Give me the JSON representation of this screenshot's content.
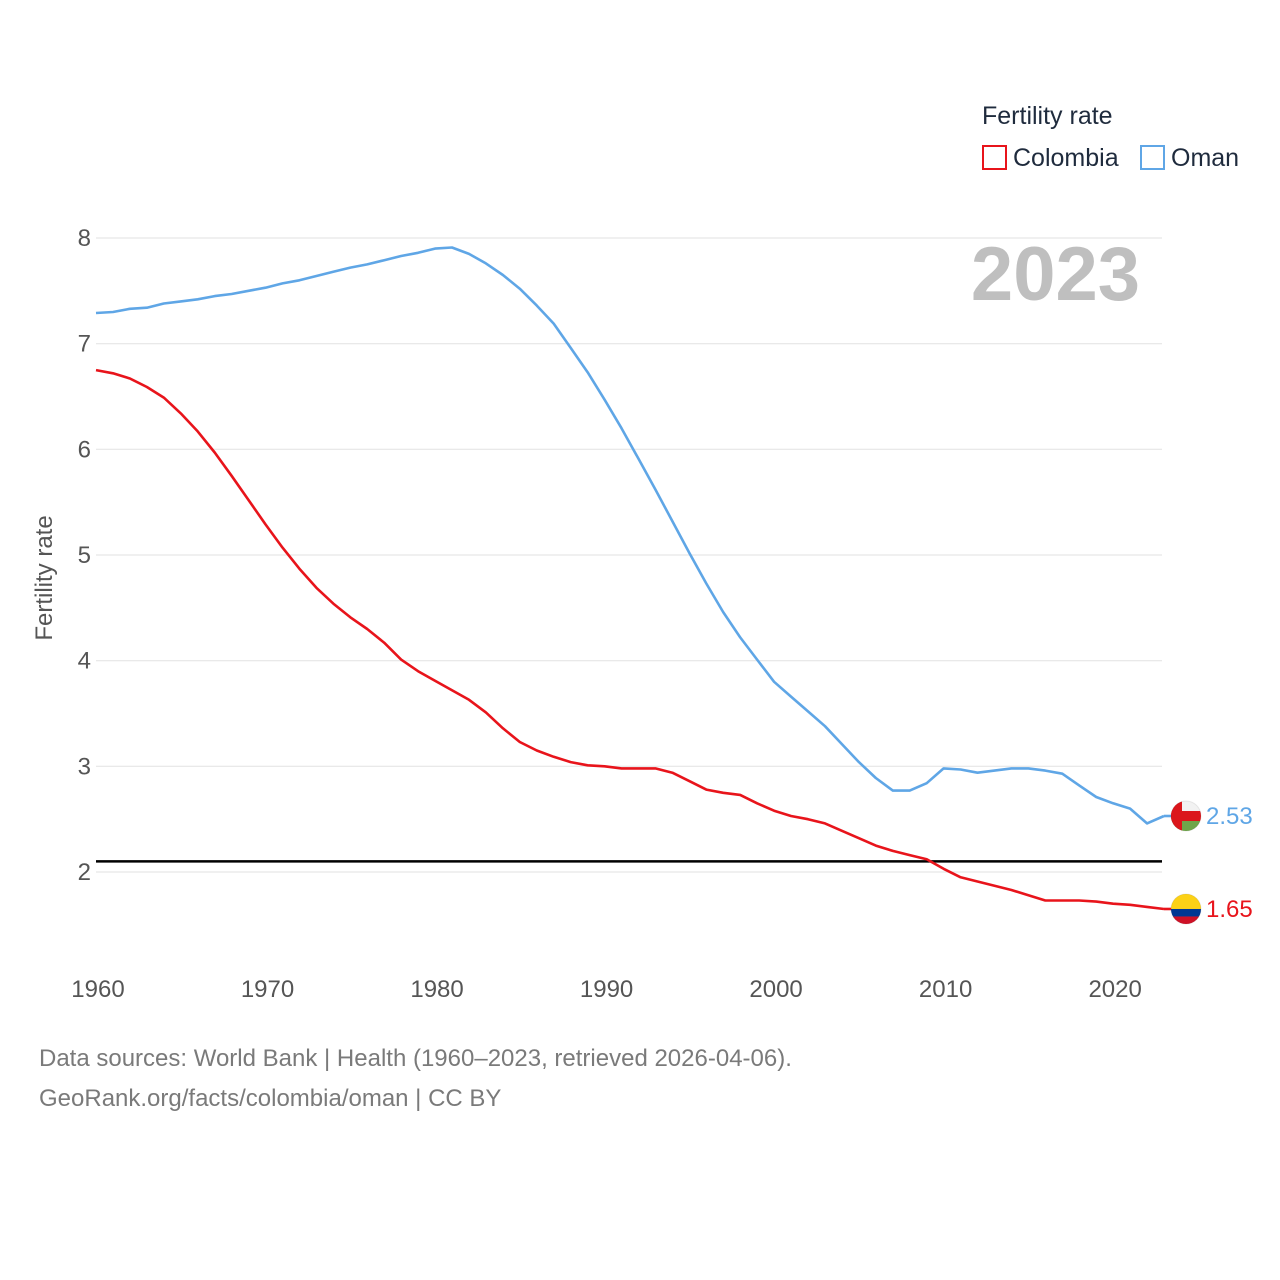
{
  "chart_data": {
    "type": "line",
    "title": "",
    "year_label": "2023",
    "xlabel": "",
    "ylabel": "Fertility rate",
    "xlim": [
      1960,
      2023
    ],
    "ylim": [
      1.2,
      8.2
    ],
    "x_ticks": [
      1960,
      1970,
      1980,
      1990,
      2000,
      2010,
      2020
    ],
    "y_ticks": [
      2,
      3,
      4,
      5,
      6,
      7,
      8
    ],
    "reference_line": 2.1,
    "legend": {
      "title": "Fertility rate",
      "position": "top-right"
    },
    "x": [
      1960,
      1961,
      1962,
      1963,
      1964,
      1965,
      1966,
      1967,
      1968,
      1969,
      1970,
      1971,
      1972,
      1973,
      1974,
      1975,
      1976,
      1977,
      1978,
      1979,
      1980,
      1981,
      1982,
      1983,
      1984,
      1985,
      1986,
      1987,
      1988,
      1989,
      1990,
      1991,
      1992,
      1993,
      1994,
      1995,
      1996,
      1997,
      1998,
      1999,
      2000,
      2001,
      2002,
      2003,
      2004,
      2005,
      2006,
      2007,
      2008,
      2009,
      2010,
      2011,
      2012,
      2013,
      2014,
      2015,
      2016,
      2017,
      2018,
      2019,
      2020,
      2021,
      2022,
      2023
    ],
    "series": [
      {
        "name": "Colombia",
        "color": "#e8141b",
        "end_label": "1.65",
        "flag": "colombia-flag",
        "values": [
          6.75,
          6.72,
          6.67,
          6.59,
          6.49,
          6.34,
          6.17,
          5.97,
          5.75,
          5.52,
          5.29,
          5.07,
          4.87,
          4.69,
          4.54,
          4.41,
          4.3,
          4.17,
          4.01,
          3.9,
          3.81,
          3.72,
          3.63,
          3.51,
          3.36,
          3.23,
          3.15,
          3.09,
          3.04,
          3.01,
          3.0,
          2.98,
          2.98,
          2.98,
          2.94,
          2.86,
          2.78,
          2.75,
          2.73,
          2.65,
          2.58,
          2.53,
          2.5,
          2.46,
          2.39,
          2.32,
          2.25,
          2.2,
          2.16,
          2.12,
          2.03,
          1.95,
          1.91,
          1.87,
          1.83,
          1.78,
          1.73,
          1.73,
          1.73,
          1.72,
          1.7,
          1.69,
          1.67,
          1.65
        ]
      },
      {
        "name": "Oman",
        "color": "#5fa6e6",
        "end_label": "2.53",
        "flag": "oman-flag",
        "values": [
          7.29,
          7.3,
          7.33,
          7.34,
          7.38,
          7.4,
          7.42,
          7.45,
          7.47,
          7.5,
          7.53,
          7.57,
          7.6,
          7.64,
          7.68,
          7.72,
          7.75,
          7.79,
          7.83,
          7.86,
          7.9,
          7.91,
          7.85,
          7.76,
          7.65,
          7.52,
          7.36,
          7.19,
          6.96,
          6.73,
          6.47,
          6.2,
          5.91,
          5.62,
          5.32,
          5.02,
          4.73,
          4.46,
          4.22,
          4.01,
          3.8,
          3.66,
          3.52,
          3.38,
          3.21,
          3.04,
          2.89,
          2.77,
          2.77,
          2.84,
          2.98,
          2.97,
          2.94,
          2.96,
          2.98,
          2.98,
          2.96,
          2.93,
          2.82,
          2.71,
          2.65,
          2.6,
          2.46,
          2.53
        ]
      }
    ]
  },
  "footer": {
    "line1": "Data sources: World Bank | Health (1960–2023, retrieved 2026-04-06).",
    "line2": "GeoRank.org/facts/colombia/oman | CC BY"
  }
}
